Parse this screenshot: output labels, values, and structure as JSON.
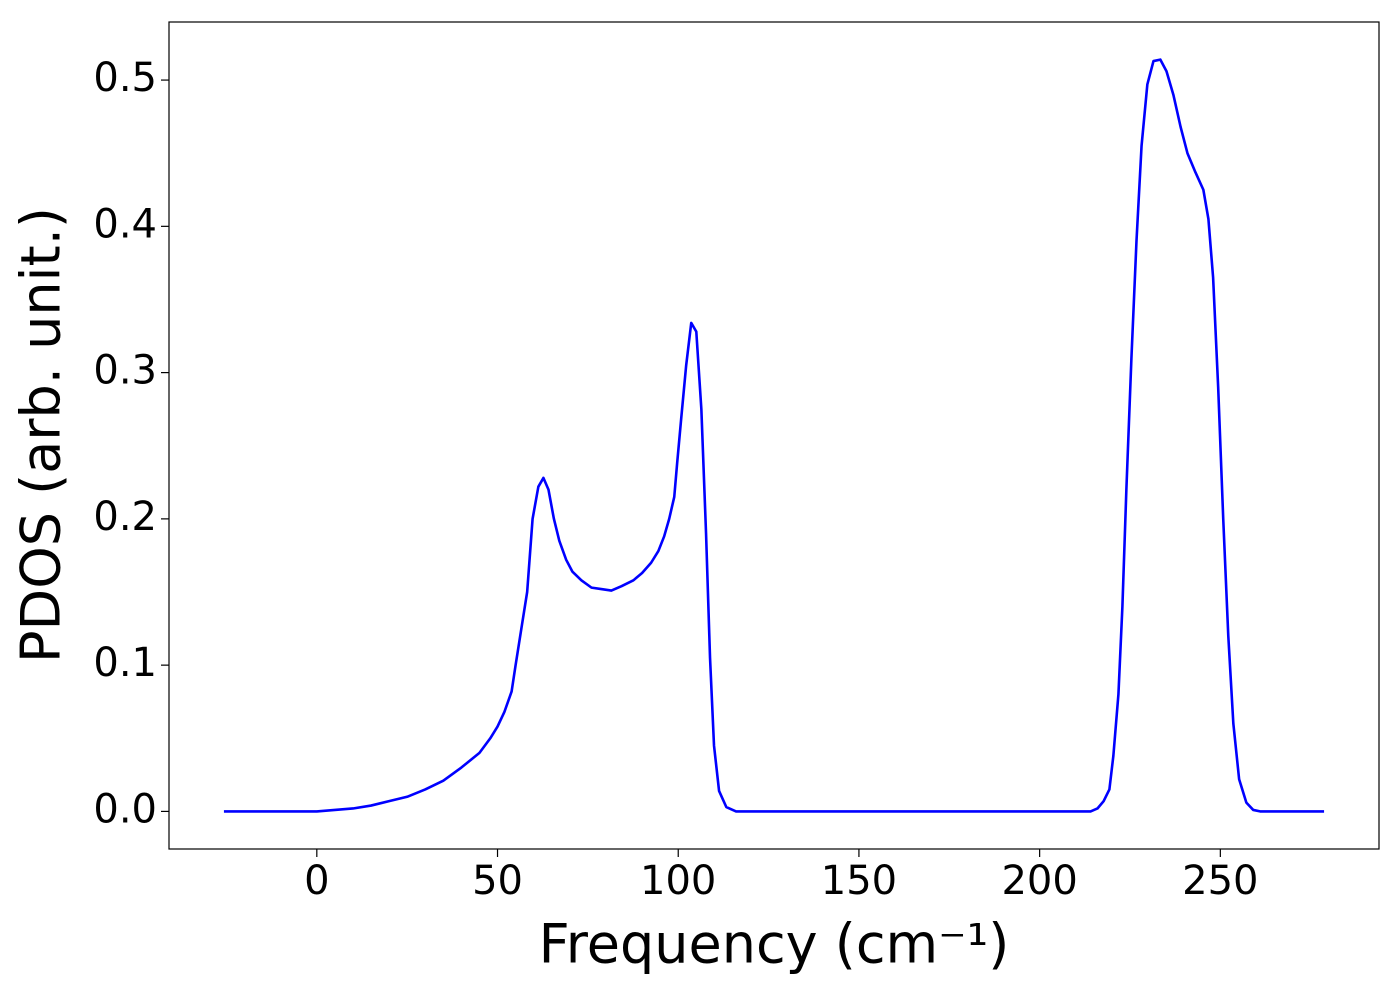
{
  "chart_data": {
    "type": "line",
    "xlabel": "Frequency (cm⁻¹)",
    "ylabel": "PDOS (arb. unit.)",
    "xlim": [
      -40.9,
      293.9
    ],
    "ylim": [
      -0.0257,
      0.5397
    ],
    "xticks": [
      0,
      50,
      100,
      150,
      200,
      250
    ],
    "yticks": [
      {
        "value": 0,
        "label": "0.0"
      },
      0.1,
      0.2,
      0.3,
      0.4,
      0.5
    ],
    "series": [
      {
        "color": "#0000ff",
        "x": [
          -25.7,
          0,
          5,
          10,
          15,
          20,
          25,
          30,
          35,
          40,
          45,
          48,
          50,
          51.9,
          53.9,
          55,
          56.6,
          58.2,
          59.7,
          61.3,
          62.7,
          64.1,
          65.6,
          67.1,
          69,
          70.7,
          73.2,
          76,
          78.7,
          81.5,
          84.3,
          87.6,
          90,
          92.5,
          94.5,
          96.1,
          97.5,
          98.9,
          99.7,
          100.8,
          102.2,
          103.6,
          105,
          106.4,
          107.7,
          108.8,
          109.9,
          111.3,
          113.3,
          116,
          214.1,
          216,
          217.7,
          219.3,
          220.4,
          221.8,
          222.9,
          224,
          225.4,
          226.8,
          228.2,
          229.8,
          231.5,
          233.4,
          235.1,
          237,
          239,
          240.9,
          243.1,
          245.3,
          246.7,
          248,
          249.4,
          250.8,
          252.2,
          253.6,
          255.2,
          257.2,
          259.1,
          261,
          278.7
        ],
        "values": [
          0,
          0,
          0.001,
          0.002,
          0.004,
          0.007,
          0.01,
          0.015,
          0.021,
          0.03,
          0.04,
          0.05,
          0.058,
          0.068,
          0.082,
          0.1,
          0.125,
          0.15,
          0.2,
          0.222,
          0.228,
          0.22,
          0.2,
          0.185,
          0.172,
          0.164,
          0.158,
          0.153,
          0.152,
          0.151,
          0.154,
          0.158,
          0.163,
          0.17,
          0.178,
          0.188,
          0.2,
          0.215,
          0.238,
          0.268,
          0.305,
          0.334,
          0.328,
          0.275,
          0.19,
          0.105,
          0.045,
          0.014,
          0.003,
          0,
          0,
          0.002,
          0.007,
          0.015,
          0.038,
          0.08,
          0.14,
          0.22,
          0.31,
          0.39,
          0.455,
          0.497,
          0.513,
          0.514,
          0.506,
          0.49,
          0.468,
          0.45,
          0.437,
          0.425,
          0.405,
          0.365,
          0.29,
          0.2,
          0.12,
          0.06,
          0.022,
          0.006,
          0.001,
          0,
          0
        ]
      }
    ]
  }
}
